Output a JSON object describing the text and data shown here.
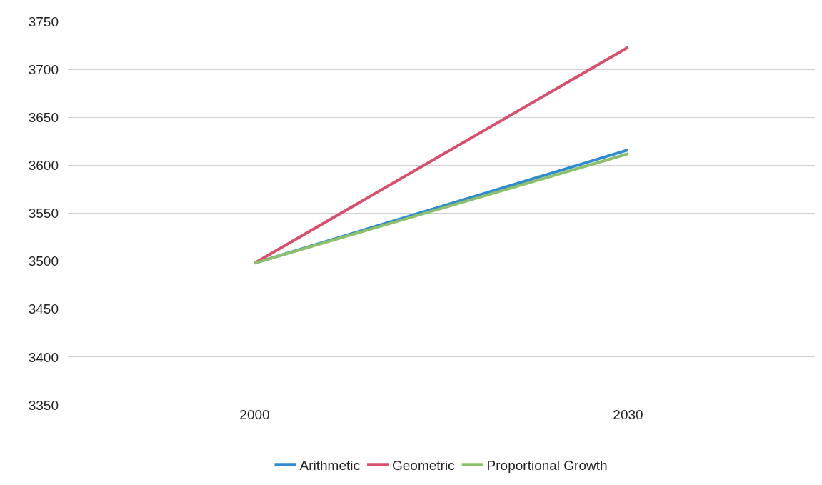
{
  "chart_data": {
    "type": "line",
    "categories": [
      "2000",
      "2030"
    ],
    "series": [
      {
        "name": "Arithmetic",
        "color": "#2e8bd0",
        "values": [
          3498,
          3616
        ]
      },
      {
        "name": "Geometric",
        "color": "#d9506e",
        "values": [
          3498,
          3723
        ]
      },
      {
        "name": "Proportional Growth",
        "color": "#8cc06a",
        "values": [
          3498,
          3612
        ]
      }
    ],
    "ylim": [
      3350,
      3750
    ],
    "yticks": [
      3350,
      3400,
      3450,
      3500,
      3550,
      3600,
      3650,
      3700,
      3750
    ],
    "grid": "y",
    "legend": "bottom",
    "marker": "none",
    "line_style": "solid"
  }
}
